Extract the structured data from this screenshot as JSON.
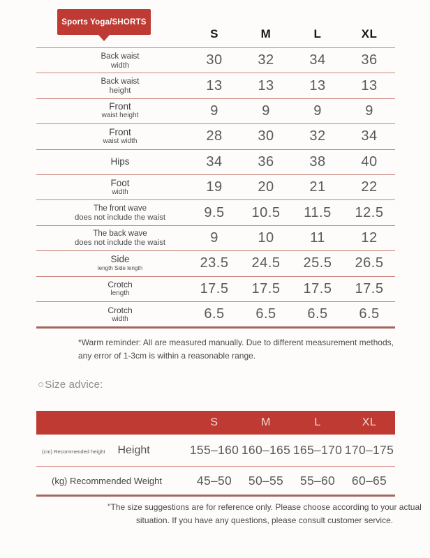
{
  "badge": {
    "label": "Sports Yoga/SHORTS"
  },
  "sizes": [
    "S",
    "M",
    "L",
    "XL"
  ],
  "measurement_table": {
    "rows": [
      {
        "label": "Back waist",
        "sublabel": "width",
        "values": [
          "30",
          "32",
          "34",
          "36"
        ]
      },
      {
        "label": "Back waist",
        "sublabel": "height",
        "values": [
          "13",
          "13",
          "13",
          "13"
        ]
      },
      {
        "label": "Front",
        "sublabel": "waist height",
        "values": [
          "9",
          "9",
          "9",
          "9"
        ]
      },
      {
        "label": "Front",
        "sublabel": "waist width",
        "values": [
          "28",
          "30",
          "32",
          "34"
        ]
      },
      {
        "label": "Hips",
        "sublabel": "",
        "values": [
          "34",
          "36",
          "38",
          "40"
        ]
      },
      {
        "label": "Foot",
        "sublabel": "width",
        "values": [
          "19",
          "20",
          "21",
          "22"
        ]
      },
      {
        "label": "The front wave",
        "sublabel": "does not include the waist",
        "values": [
          "9.5",
          "10.5",
          "11.5",
          "12.5"
        ]
      },
      {
        "label": "The back wave",
        "sublabel": "does not include the waist",
        "values": [
          "9",
          "10",
          "11",
          "12"
        ]
      },
      {
        "label": "Side",
        "sublabel": "length Side length",
        "values": [
          "23.5",
          "24.5",
          "25.5",
          "26.5"
        ]
      },
      {
        "label": "Crotch",
        "sublabel": "length",
        "values": [
          "17.5",
          "17.5",
          "17.5",
          "17.5"
        ]
      },
      {
        "label": "Crotch",
        "sublabel": "width",
        "values": [
          "6.5",
          "6.5",
          "6.5",
          "6.5"
        ]
      }
    ]
  },
  "warm_reminder": "*Warm reminder: All are measured manually. Due to different measurement methods, any error of 1-3cm is within a reasonable range.",
  "size_advice": {
    "heading_icon": "○",
    "heading": "Size advice:",
    "height_row": {
      "prefix": "(cm) Recommended height",
      "label": "Height",
      "values": [
        "155–160",
        "160–165",
        "165–170",
        "170–175"
      ]
    },
    "weight_row": {
      "label": "(kg) Recommended Weight",
      "values": [
        "45–50",
        "50–55",
        "55–60",
        "60–65"
      ]
    },
    "note": "\"The size suggestions are for reference only. Please choose according to your actual situation. If you have any questions, please consult customer service."
  },
  "colors": {
    "accent_red": "#bf3a33",
    "line_light": "#c9827a",
    "line_dark": "#a2665f"
  }
}
